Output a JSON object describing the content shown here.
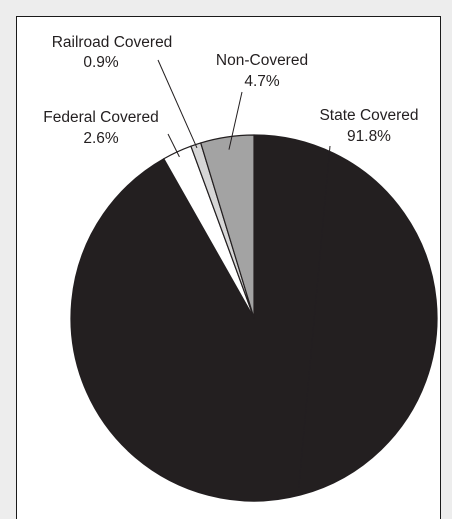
{
  "chart_data": {
    "type": "pie",
    "slices": [
      {
        "label": "State Covered",
        "value": 91.8,
        "display": "91.8%",
        "color": "#231f20"
      },
      {
        "label": "Federal Covered",
        "value": 2.6,
        "display": "2.6%",
        "color": "#ffffff"
      },
      {
        "label": "Railroad Covered",
        "value": 0.9,
        "display": "0.9%",
        "color": "#d6d6d6"
      },
      {
        "label": "Non-Covered",
        "value": 4.7,
        "display": "4.7%",
        "color": "#a3a3a3"
      }
    ],
    "start_angle_deg": 0,
    "direction": "clockwise",
    "title": "",
    "legend": "none"
  },
  "colors": {
    "background": "#ededed",
    "frame_fill": "#ffffff",
    "outline": "#231f20"
  }
}
